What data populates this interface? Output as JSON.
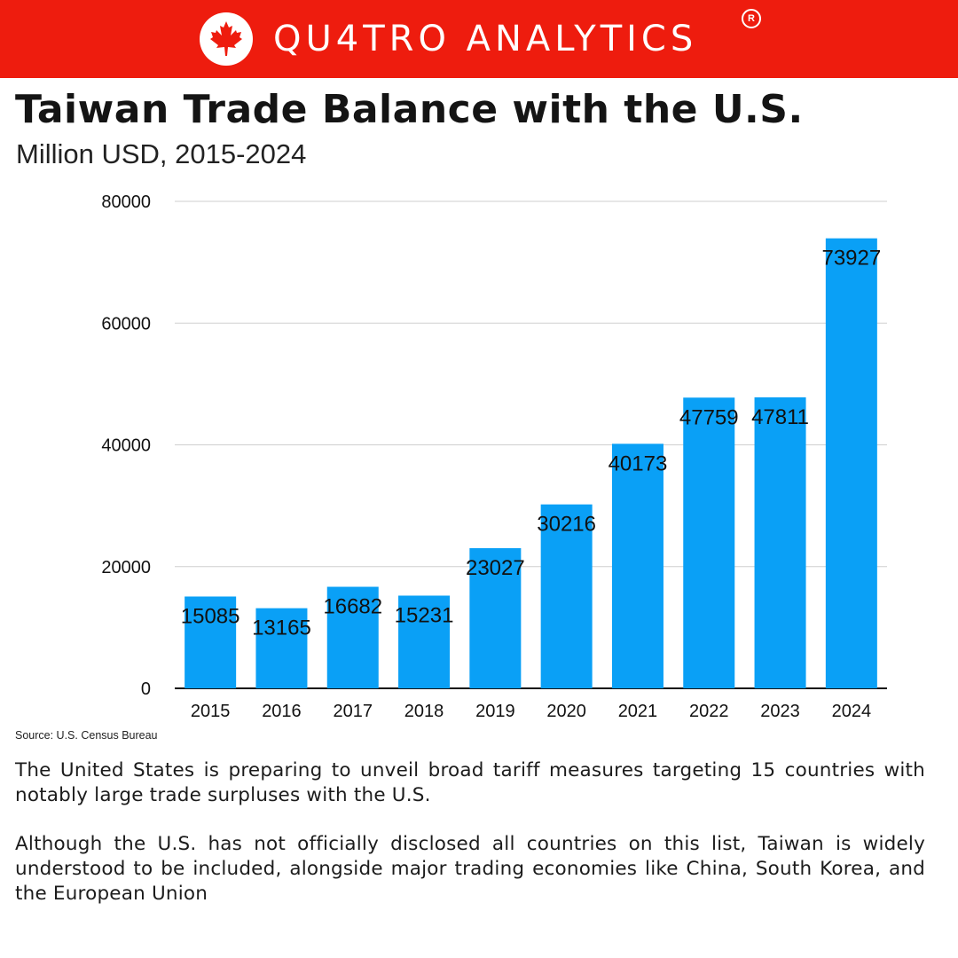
{
  "header": {
    "brand": "QU4TRO ANALYTICS",
    "logo_icon": "maple-leaf-icon",
    "registered_mark": "R",
    "background_color": "#ee1c0e"
  },
  "title": "Taiwan Trade Balance with the U.S.",
  "subtitle": "Million USD, 2015-2024",
  "source": "Source: U.S. Census Bureau",
  "paragraphs": [
    "The United States is preparing to unveil broad tariff measures targeting 15 countries with notably large trade surpluses with the U.S.",
    "Although the U.S. has not officially disclosed all countries on this list, Taiwan is widely understood to be included, alongside major trading economies like China, South Korea, and the European Union"
  ],
  "chart_data": {
    "type": "bar",
    "categories": [
      "2015",
      "2016",
      "2017",
      "2018",
      "2019",
      "2020",
      "2021",
      "2022",
      "2023",
      "2024"
    ],
    "values": [
      15085,
      13165,
      16682,
      15231,
      23027,
      30216,
      40173,
      47759,
      47811,
      73927
    ],
    "ylim": [
      0,
      80000
    ],
    "yticks": [
      0,
      20000,
      40000,
      60000,
      80000
    ],
    "bar_color": "#0aa0f6",
    "grid": true,
    "legend": false
  }
}
